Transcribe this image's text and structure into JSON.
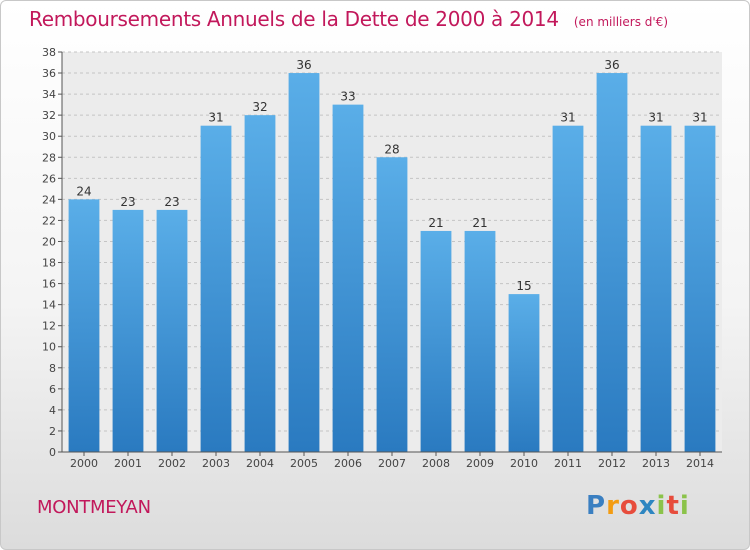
{
  "title": "Remboursements Annuels de la Dette de 2000 à 2014",
  "subtitle": "(en milliers d'€)",
  "commune": "MONTMEYAN",
  "logo": {
    "text": "Proxiti",
    "letters": [
      {
        "char": "P",
        "color": "#3a7fc1"
      },
      {
        "char": "r",
        "color": "#f39c12"
      },
      {
        "char": "o",
        "color": "#e74c3c"
      },
      {
        "char": "x",
        "color": "#2e86c1"
      },
      {
        "char": "i",
        "color": "#8bc34a"
      },
      {
        "char": "t",
        "color": "#e74c3c"
      },
      {
        "char": "i",
        "color": "#8bc34a"
      }
    ]
  },
  "colors": {
    "bar_top": "#5aaee8",
    "bar_bottom": "#2a7ac0",
    "accent": "#c2185b"
  },
  "chart_data": {
    "type": "bar",
    "categories": [
      "2000",
      "2001",
      "2002",
      "2003",
      "2004",
      "2005",
      "2006",
      "2007",
      "2008",
      "2009",
      "2010",
      "2011",
      "2012",
      "2013",
      "2014"
    ],
    "values": [
      24,
      23,
      23,
      31,
      32,
      36,
      33,
      28,
      21,
      21,
      15,
      31,
      36,
      31,
      31
    ],
    "ylim": [
      0,
      38
    ],
    "yticks": [
      0,
      2,
      4,
      6,
      8,
      10,
      12,
      14,
      16,
      18,
      20,
      22,
      24,
      26,
      28,
      30,
      32,
      34,
      36,
      38
    ],
    "grid": true,
    "data_labels": true
  }
}
